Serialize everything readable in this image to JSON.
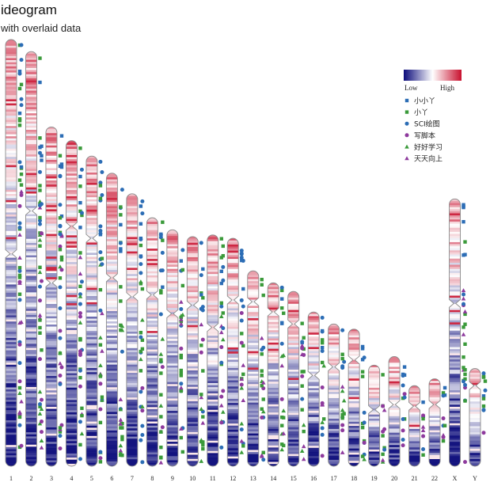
{
  "title": "ideogram",
  "subtitle": "with overlaid data",
  "colors": {
    "low": "#0a0a7a",
    "mid": "#ffffff",
    "high": "#c8102e",
    "outline": "#8a8a8a"
  },
  "legend": {
    "placement": "top-right",
    "gradient_low_label": "Low",
    "gradient_high_label": "High",
    "entries": [
      {
        "label": "小小丫",
        "shape": "square",
        "color": "#2c6db5"
      },
      {
        "label": "小丫",
        "shape": "square",
        "color": "#3a9a3a"
      },
      {
        "label": "SCI绘图",
        "shape": "circle",
        "color": "#2c6db5"
      },
      {
        "label": "写脚本",
        "shape": "circle",
        "color": "#8e3a9d"
      },
      {
        "label": "好好学习",
        "shape": "triangle",
        "color": "#3a9a3a"
      },
      {
        "label": "天天向上",
        "shape": "triangle",
        "color": "#8e3a9d"
      }
    ]
  },
  "chart_data": {
    "type": "ideogram",
    "title": "ideogram",
    "subtitle": "with overlaid data",
    "heatmap_scale": [
      "Low",
      "High"
    ],
    "chromosomes": [
      {
        "name": "1",
        "length_mb": 249,
        "centromere_mb": 125
      },
      {
        "name": "2",
        "length_mb": 242,
        "centromere_mb": 93
      },
      {
        "name": "3",
        "length_mb": 198,
        "centromere_mb": 91
      },
      {
        "name": "4",
        "length_mb": 190,
        "centromere_mb": 50
      },
      {
        "name": "5",
        "length_mb": 181,
        "centromere_mb": 48
      },
      {
        "name": "6",
        "length_mb": 171,
        "centromere_mb": 61
      },
      {
        "name": "7",
        "length_mb": 159,
        "centromere_mb": 60
      },
      {
        "name": "8",
        "length_mb": 145,
        "centromere_mb": 45
      },
      {
        "name": "9",
        "length_mb": 138,
        "centromere_mb": 49
      },
      {
        "name": "10",
        "length_mb": 134,
        "centromere_mb": 40
      },
      {
        "name": "11",
        "length_mb": 135,
        "centromere_mb": 54
      },
      {
        "name": "12",
        "length_mb": 133,
        "centromere_mb": 36
      },
      {
        "name": "13",
        "length_mb": 114,
        "centromere_mb": 18
      },
      {
        "name": "14",
        "length_mb": 107,
        "centromere_mb": 17
      },
      {
        "name": "15",
        "length_mb": 102,
        "centromere_mb": 19
      },
      {
        "name": "16",
        "length_mb": 90,
        "centromere_mb": 37
      },
      {
        "name": "17",
        "length_mb": 83,
        "centromere_mb": 25
      },
      {
        "name": "18",
        "length_mb": 80,
        "centromere_mb": 18
      },
      {
        "name": "19",
        "length_mb": 59,
        "centromere_mb": 26
      },
      {
        "name": "20",
        "length_mb": 64,
        "centromere_mb": 28
      },
      {
        "name": "21",
        "length_mb": 47,
        "centromere_mb": 12
      },
      {
        "name": "22",
        "length_mb": 51,
        "centromere_mb": 15
      },
      {
        "name": "X",
        "length_mb": 156,
        "centromere_mb": 61
      },
      {
        "name": "Y",
        "length_mb": 57,
        "centromere_mb": 10
      }
    ],
    "series": [
      {
        "name": "小小丫",
        "shape": "square",
        "color": "#2c6db5"
      },
      {
        "name": "小丫",
        "shape": "square",
        "color": "#3a9a3a"
      },
      {
        "name": "SCI绘图",
        "shape": "circle",
        "color": "#2c6db5"
      },
      {
        "name": "写脚本",
        "shape": "circle",
        "color": "#8e3a9d"
      },
      {
        "name": "好好学习",
        "shape": "triangle",
        "color": "#3a9a3a"
      },
      {
        "name": "天天向上",
        "shape": "triangle",
        "color": "#8e3a9d"
      }
    ]
  }
}
